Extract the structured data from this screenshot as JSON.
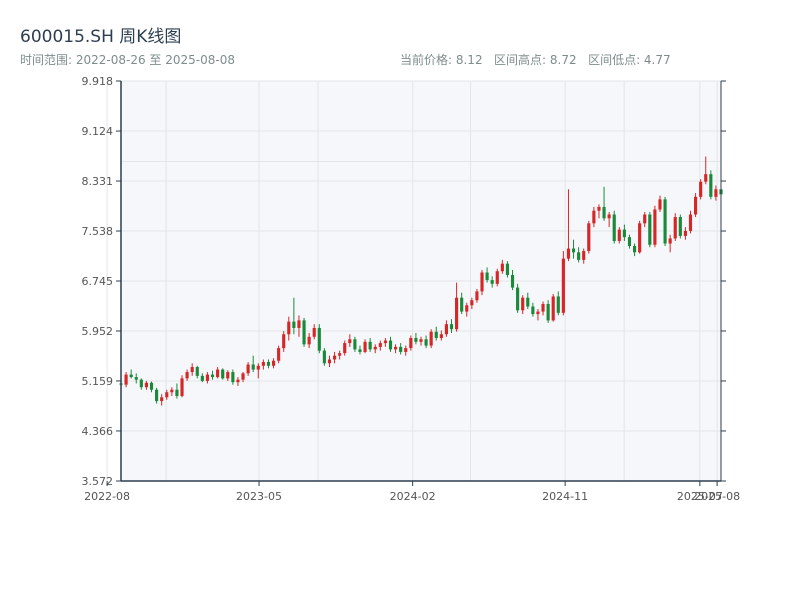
{
  "header": {
    "title": "600015.SH 周K线图",
    "date_range": "时间范围: 2022-08-26 至 2025-08-08",
    "current_price": "当前价格: 8.12",
    "range_high": "区间高点: 8.72",
    "range_low": "区间低点: 4.77"
  },
  "colors": {
    "up": "#d62728",
    "down": "#1a8a3a",
    "axis": "#2c3e50",
    "plot_bg": "#f5f7fa",
    "grid": "#e2e6ea"
  },
  "chart_data": {
    "type": "candlestick",
    "title": "600015.SH 周K线图",
    "xlabel": "",
    "ylabel": "",
    "ylim": [
      3.572,
      9.918
    ],
    "xlim": [
      "2022-08-26",
      "2025-08-08"
    ],
    "x_ticks": [
      "2022-08",
      "2023-05",
      "2024-02",
      "2024-11",
      "2025-07",
      "2025-08"
    ],
    "y_ticks": [
      "3.572",
      "4.366",
      "5.159",
      "5.952",
      "6.745",
      "7.538",
      "8.331",
      "9.124",
      "9.918"
    ],
    "grid": true,
    "series": [
      {
        "ohlc_weekly": [
          [
            5.12,
            5.16,
            5.02,
            5.1
          ],
          [
            5.1,
            5.3,
            5.06,
            5.26
          ],
          [
            5.26,
            5.34,
            5.2,
            5.22
          ],
          [
            5.22,
            5.28,
            5.12,
            5.18
          ],
          [
            5.18,
            5.2,
            5.02,
            5.06
          ],
          [
            5.06,
            5.16,
            5.02,
            5.13
          ],
          [
            5.13,
            5.15,
            4.98,
            5.02
          ],
          [
            5.02,
            5.05,
            4.8,
            4.84
          ],
          [
            4.84,
            4.95,
            4.77,
            4.9
          ],
          [
            4.9,
            5.02,
            4.86,
            4.98
          ],
          [
            4.98,
            5.06,
            4.92,
            5.02
          ],
          [
            5.02,
            5.12,
            4.88,
            4.92
          ],
          [
            4.92,
            5.25,
            4.9,
            5.2
          ],
          [
            5.2,
            5.34,
            5.16,
            5.3
          ],
          [
            5.3,
            5.44,
            5.24,
            5.38
          ],
          [
            5.38,
            5.4,
            5.2,
            5.24
          ],
          [
            5.24,
            5.28,
            5.14,
            5.16
          ],
          [
            5.16,
            5.3,
            5.12,
            5.26
          ],
          [
            5.26,
            5.32,
            5.18,
            5.22
          ],
          [
            5.22,
            5.38,
            5.2,
            5.34
          ],
          [
            5.34,
            5.36,
            5.18,
            5.2
          ],
          [
            5.2,
            5.33,
            5.16,
            5.3
          ],
          [
            5.3,
            5.34,
            5.1,
            5.14
          ],
          [
            5.14,
            5.22,
            5.08,
            5.18
          ],
          [
            5.18,
            5.3,
            5.14,
            5.28
          ],
          [
            5.28,
            5.46,
            5.24,
            5.42
          ],
          [
            5.42,
            5.56,
            5.3,
            5.34
          ],
          [
            5.34,
            5.44,
            5.2,
            5.4
          ],
          [
            5.4,
            5.5,
            5.34,
            5.46
          ],
          [
            5.46,
            5.5,
            5.36,
            5.4
          ],
          [
            5.4,
            5.52,
            5.36,
            5.48
          ],
          [
            5.48,
            5.72,
            5.44,
            5.68
          ],
          [
            5.68,
            5.95,
            5.62,
            5.9
          ],
          [
            5.9,
            6.18,
            5.8,
            6.1
          ],
          [
            6.1,
            6.48,
            5.9,
            6.0
          ],
          [
            6.0,
            6.2,
            5.86,
            6.12
          ],
          [
            6.12,
            6.16,
            5.7,
            5.74
          ],
          [
            5.74,
            5.92,
            5.68,
            5.86
          ],
          [
            5.86,
            6.06,
            5.82,
            6.0
          ],
          [
            6.0,
            6.06,
            5.6,
            5.64
          ],
          [
            5.64,
            5.68,
            5.4,
            5.44
          ],
          [
            5.44,
            5.56,
            5.38,
            5.5
          ],
          [
            5.5,
            5.62,
            5.44,
            5.56
          ],
          [
            5.56,
            5.64,
            5.5,
            5.6
          ],
          [
            5.6,
            5.8,
            5.56,
            5.76
          ],
          [
            5.76,
            5.9,
            5.7,
            5.82
          ],
          [
            5.82,
            5.86,
            5.62,
            5.66
          ],
          [
            5.66,
            5.72,
            5.58,
            5.62
          ],
          [
            5.62,
            5.82,
            5.6,
            5.78
          ],
          [
            5.78,
            5.84,
            5.62,
            5.66
          ],
          [
            5.66,
            5.74,
            5.6,
            5.7
          ],
          [
            5.7,
            5.8,
            5.64,
            5.76
          ],
          [
            5.76,
            5.84,
            5.7,
            5.8
          ],
          [
            5.8,
            5.86,
            5.62,
            5.66
          ],
          [
            5.66,
            5.74,
            5.6,
            5.7
          ],
          [
            5.7,
            5.76,
            5.58,
            5.62
          ],
          [
            5.62,
            5.72,
            5.56,
            5.68
          ],
          [
            5.68,
            5.88,
            5.64,
            5.84
          ],
          [
            5.84,
            5.92,
            5.74,
            5.78
          ],
          [
            5.78,
            5.86,
            5.72,
            5.82
          ],
          [
            5.82,
            5.88,
            5.68,
            5.72
          ],
          [
            5.72,
            5.98,
            5.68,
            5.94
          ],
          [
            5.94,
            6.02,
            5.8,
            5.84
          ],
          [
            5.84,
            5.96,
            5.8,
            5.9
          ],
          [
            5.9,
            6.12,
            5.86,
            6.06
          ],
          [
            6.06,
            6.14,
            5.92,
            5.98
          ],
          [
            5.98,
            6.72,
            5.94,
            6.48
          ],
          [
            6.48,
            6.56,
            6.22,
            6.26
          ],
          [
            6.26,
            6.4,
            6.18,
            6.36
          ],
          [
            6.36,
            6.48,
            6.3,
            6.44
          ],
          [
            6.44,
            6.62,
            6.4,
            6.58
          ],
          [
            6.58,
            6.92,
            6.52,
            6.88
          ],
          [
            6.88,
            6.96,
            6.72,
            6.76
          ],
          [
            6.76,
            6.82,
            6.64,
            6.7
          ],
          [
            6.7,
            6.94,
            6.66,
            6.9
          ],
          [
            6.9,
            7.08,
            6.86,
            7.02
          ],
          [
            7.02,
            7.06,
            6.8,
            6.84
          ],
          [
            6.84,
            6.92,
            6.6,
            6.64
          ],
          [
            6.64,
            6.7,
            6.24,
            6.28
          ],
          [
            6.28,
            6.52,
            6.22,
            6.48
          ],
          [
            6.48,
            6.56,
            6.3,
            6.34
          ],
          [
            6.34,
            6.4,
            6.18,
            6.22
          ],
          [
            6.22,
            6.3,
            6.12,
            6.26
          ],
          [
            6.26,
            6.42,
            6.2,
            6.38
          ],
          [
            6.38,
            6.44,
            6.08,
            6.12
          ],
          [
            6.12,
            6.54,
            6.1,
            6.5
          ],
          [
            6.5,
            6.58,
            6.2,
            6.24
          ],
          [
            6.24,
            7.22,
            6.2,
            7.1
          ],
          [
            7.1,
            8.2,
            7.06,
            7.26
          ],
          [
            7.26,
            7.4,
            7.1,
            7.2
          ],
          [
            7.2,
            7.28,
            7.04,
            7.08
          ],
          [
            7.08,
            7.26,
            7.02,
            7.22
          ],
          [
            7.22,
            7.7,
            7.18,
            7.66
          ],
          [
            7.66,
            7.92,
            7.6,
            7.86
          ],
          [
            7.86,
            7.96,
            7.74,
            7.92
          ],
          [
            7.92,
            8.24,
            7.7,
            7.74
          ],
          [
            7.74,
            7.84,
            7.6,
            7.8
          ],
          [
            7.8,
            7.86,
            7.34,
            7.38
          ],
          [
            7.38,
            7.6,
            7.34,
            7.56
          ],
          [
            7.56,
            7.64,
            7.38,
            7.44
          ],
          [
            7.44,
            7.48,
            7.26,
            7.3
          ],
          [
            7.3,
            7.34,
            7.14,
            7.2
          ],
          [
            7.2,
            7.7,
            7.18,
            7.66
          ],
          [
            7.66,
            7.84,
            7.6,
            7.8
          ],
          [
            7.8,
            7.84,
            7.28,
            7.32
          ],
          [
            7.32,
            7.94,
            7.28,
            7.88
          ],
          [
            7.88,
            8.1,
            7.84,
            8.04
          ],
          [
            8.04,
            8.08,
            7.3,
            7.34
          ],
          [
            7.34,
            7.48,
            7.2,
            7.42
          ],
          [
            7.42,
            7.82,
            7.38,
            7.76
          ],
          [
            7.76,
            7.8,
            7.42,
            7.46
          ],
          [
            7.46,
            7.6,
            7.4,
            7.54
          ],
          [
            7.54,
            7.86,
            7.5,
            7.8
          ],
          [
            7.8,
            8.14,
            7.76,
            8.08
          ],
          [
            8.08,
            8.36,
            8.04,
            8.32
          ],
          [
            8.32,
            8.72,
            8.28,
            8.44
          ],
          [
            8.44,
            8.5,
            8.04,
            8.08
          ],
          [
            8.08,
            8.26,
            8.02,
            8.2
          ],
          [
            8.2,
            8.24,
            8.06,
            8.12
          ]
        ]
      }
    ]
  }
}
